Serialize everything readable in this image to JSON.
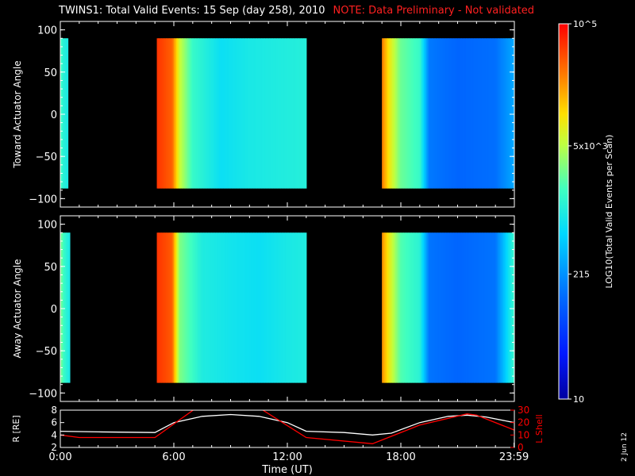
{
  "header": {
    "title": "TWINS1: Total Valid Events: 15 Sep (day 258), 2010",
    "note": "NOTE: Data Preliminary - Not validated"
  },
  "date_stamp": "2 Jun 12",
  "colors": {
    "background": "#000000",
    "axis": "#ffffff",
    "note": "#ff2020",
    "lshell": "#ff0000",
    "r_line": "#ffffff"
  },
  "chart_data": [
    {
      "type": "heatmap",
      "name": "toward-panel",
      "ylabel": "Toward Actuator Angle",
      "xlim": [
        0,
        24
      ],
      "ylim": [
        -110,
        110
      ],
      "yticks": [
        -100,
        -50,
        0,
        50,
        100
      ],
      "ytick_labels": [
        "−100",
        "−50",
        "0",
        "50",
        "100"
      ],
      "data_ylim": [
        -88,
        90
      ],
      "colorbar": {
        "scale": "log",
        "range": [
          10,
          100000
        ],
        "label": "LOG10(Total Valid Events per Scan)",
        "tick_labels": [
          "10",
          "215",
          "5x10^3",
          "10^5"
        ],
        "tick_values": [
          10,
          215,
          5000,
          100000
        ]
      },
      "segments": [
        {
          "start": 0.0,
          "end": 0.4,
          "profile": [
            [
              0.0,
              1800
            ],
            [
              0.15,
              1200
            ],
            [
              0.4,
              900
            ]
          ]
        },
        {
          "start": 5.1,
          "end": 13.0,
          "profile": [
            [
              5.1,
              60000
            ],
            [
              5.9,
              38000
            ],
            [
              6.3,
              6000
            ],
            [
              7.0,
              1500
            ],
            [
              8.5,
              700
            ],
            [
              10.0,
              900
            ],
            [
              11.5,
              1000
            ],
            [
              13.0,
              1100
            ]
          ]
        },
        {
          "start": 17.0,
          "end": 23.99,
          "profile": [
            [
              17.0,
              30000
            ],
            [
              17.4,
              9000
            ],
            [
              18.0,
              2500
            ],
            [
              19.0,
              1500
            ],
            [
              19.5,
              150
            ],
            [
              21.0,
              110
            ],
            [
              23.0,
              130
            ],
            [
              23.99,
              300
            ]
          ]
        }
      ]
    },
    {
      "type": "heatmap",
      "name": "away-panel",
      "ylabel": "Away Actuator Angle",
      "xlim": [
        0,
        24
      ],
      "ylim": [
        -110,
        110
      ],
      "yticks": [
        -100,
        -50,
        0,
        50,
        100
      ],
      "ytick_labels": [
        "−100",
        "−50",
        "0",
        "50",
        "100"
      ],
      "data_ylim": [
        -88,
        90
      ],
      "segments": [
        {
          "start": 0.0,
          "end": 0.5,
          "profile": [
            [
              0.0,
              3000
            ],
            [
              0.2,
              1500
            ],
            [
              0.5,
              900
            ]
          ]
        },
        {
          "start": 5.1,
          "end": 13.0,
          "profile": [
            [
              5.1,
              60000
            ],
            [
              5.9,
              40000
            ],
            [
              6.3,
              3000
            ],
            [
              7.5,
              1000
            ],
            [
              9.0,
              800
            ],
            [
              10.5,
              700
            ],
            [
              12.0,
              900
            ],
            [
              13.0,
              1000
            ]
          ]
        },
        {
          "start": 17.0,
          "end": 23.99,
          "profile": [
            [
              17.0,
              25000
            ],
            [
              17.4,
              8000
            ],
            [
              18.0,
              2000
            ],
            [
              19.0,
              1200
            ],
            [
              19.5,
              140
            ],
            [
              21.0,
              110
            ],
            [
              23.0,
              140
            ],
            [
              23.99,
              1500
            ]
          ]
        }
      ]
    },
    {
      "type": "line",
      "name": "orbit-panel",
      "xlabel": "Time (UT)",
      "xticks": [
        0,
        6,
        12,
        18,
        23.983
      ],
      "xtick_labels": [
        "0:00",
        "6:00",
        "12:00",
        "18:00",
        "23:59"
      ],
      "ylabel_left": "R [RE]",
      "ylim_left": [
        2,
        8
      ],
      "yticks_left": [
        2,
        4,
        6,
        8
      ],
      "ylabel_right": "L Shell",
      "ylim_right": [
        0,
        30
      ],
      "yticks_right": [
        0,
        10,
        20,
        30
      ],
      "series": [
        {
          "name": "R [RE]",
          "axis": "left",
          "color": "#ffffff",
          "x": [
            0,
            2,
            5,
            6,
            7.5,
            9,
            10.5,
            12,
            13,
            15,
            16.5,
            17.5,
            19,
            20.5,
            21.5,
            22.5,
            24
          ],
          "y": [
            4.6,
            4.5,
            4.4,
            6.0,
            7.0,
            7.3,
            7.0,
            6.0,
            4.6,
            4.4,
            4.0,
            4.3,
            6.0,
            7.0,
            7.2,
            6.9,
            6.0
          ]
        },
        {
          "name": "L Shell",
          "axis": "right",
          "color": "#ff0000",
          "x": [
            0,
            1,
            5,
            7.2,
            10.5,
            13,
            16.5,
            19,
            21.5,
            22,
            24
          ],
          "y": [
            10,
            8,
            8,
            32,
            32,
            8,
            3,
            18,
            27,
            26,
            14
          ]
        }
      ]
    }
  ]
}
